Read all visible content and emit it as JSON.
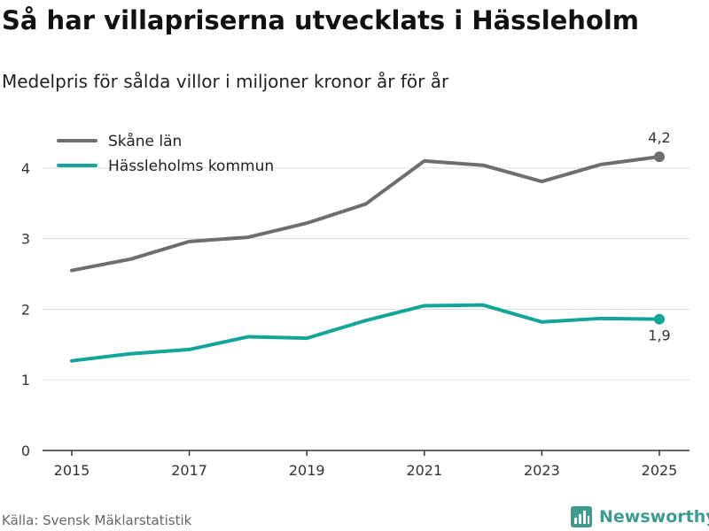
{
  "chart_data": {
    "type": "line",
    "title": "Så har villapriserna utvecklats i Hässleholm",
    "subtitle": "Medelpris för sålda villor i miljoner kronor år för år",
    "x": [
      2015,
      2016,
      2017,
      2018,
      2019,
      2020,
      2021,
      2022,
      2023,
      2024,
      2025
    ],
    "x_ticks": [
      "2015",
      "2017",
      "2019",
      "2021",
      "2023",
      "2025"
    ],
    "y_ticks": [
      "0",
      "1",
      "2",
      "3",
      "4"
    ],
    "ylim": [
      0,
      4.5
    ],
    "xlabel": "",
    "ylabel": "",
    "grid": true,
    "legend_position": "top-left",
    "series": [
      {
        "name": "Skåne län",
        "color": "#6e6e6e",
        "values": [
          2.55,
          2.71,
          2.96,
          3.02,
          3.22,
          3.49,
          4.1,
          4.04,
          3.81,
          4.05,
          4.16
        ],
        "end_label": "4,2"
      },
      {
        "name": "Hässleholms kommun",
        "color": "#12a598",
        "values": [
          1.27,
          1.37,
          1.43,
          1.61,
          1.59,
          1.84,
          2.05,
          2.06,
          1.82,
          1.87,
          1.86
        ],
        "end_label": "1,9"
      }
    ]
  },
  "footer": {
    "source": "Källa: Svensk Mäklarstatistik",
    "brand": "Newsworthy",
    "brand_color": "#3d9c8e"
  }
}
